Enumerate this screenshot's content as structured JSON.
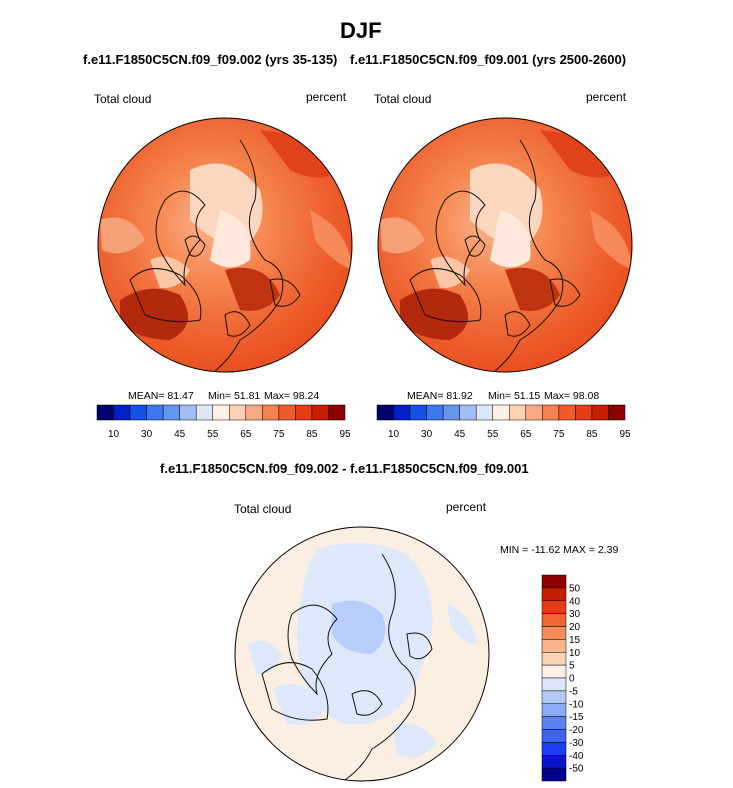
{
  "page": {
    "title": "DJF",
    "left_case": "f.e11.F1850C5CN.f09_f09.002 (yrs 35-135)",
    "right_case": "f.e11.F1850C5CN.f09_f09.001 (yrs 2500-2600)",
    "diff_title": "f.e11.F1850C5CN.f09_f09.002 - f.e11.F1850C5CN.f09_f09.001"
  },
  "colors": {
    "abs_scale": [
      "#00006e",
      "#0020c8",
      "#1450e6",
      "#3c78f0",
      "#6496f0",
      "#a0bef5",
      "#dce8f8",
      "#fff0e6",
      "#ffd2b4",
      "#f8aa82",
      "#f58250",
      "#f05a28",
      "#e63c14",
      "#c81e00",
      "#8c0000"
    ],
    "diff_scale": [
      "#00008c",
      "#0a14c8",
      "#1e3cf0",
      "#3c64f0",
      "#5a82f0",
      "#8caaf5",
      "#b4c8f8",
      "#dce8fa",
      "#fff0e6",
      "#fad2b4",
      "#f8b48c",
      "#f58c5a",
      "#f06432",
      "#e63c14",
      "#c81e00",
      "#8c0000"
    ]
  },
  "chart_data": [
    {
      "type": "heatmap",
      "title": "f.e11.F1850C5CN.f09_f09.002 (yrs 35-135)",
      "variable": "Total cloud",
      "units": "percent",
      "projection": "polar stereographic (north)",
      "stats": {
        "mean": "MEAN= 81.47",
        "min": "Min= 51.81",
        "max": "Max= 98.24"
      },
      "colorbar": {
        "ticks": [
          "10",
          "30",
          "45",
          "55",
          "65",
          "75",
          "85",
          "95"
        ]
      }
    },
    {
      "type": "heatmap",
      "title": "f.e11.F1850C5CN.f09_f09.001 (yrs 2500-2600)",
      "variable": "Total cloud",
      "units": "percent",
      "projection": "polar stereographic (north)",
      "stats": {
        "mean": "MEAN= 81.92",
        "min": "Min= 51.15",
        "max": "Max= 98.08"
      },
      "colorbar": {
        "ticks": [
          "10",
          "30",
          "45",
          "55",
          "65",
          "75",
          "85",
          "95"
        ]
      }
    },
    {
      "type": "heatmap",
      "title": "f.e11.F1850C5CN.f09_f09.002 - f.e11.F1850C5CN.f09_f09.001",
      "variable": "Total cloud",
      "units": "percent",
      "projection": "polar stereographic (north)",
      "stats": {
        "minmax": "MIN = -11.62 MAX =   2.39"
      },
      "colorbar": {
        "ticks": [
          "50",
          "40",
          "30",
          "20",
          "15",
          "10",
          "5",
          "0",
          "-5",
          "-10",
          "-15",
          "-20",
          "-30",
          "-40",
          "-50"
        ]
      }
    }
  ]
}
